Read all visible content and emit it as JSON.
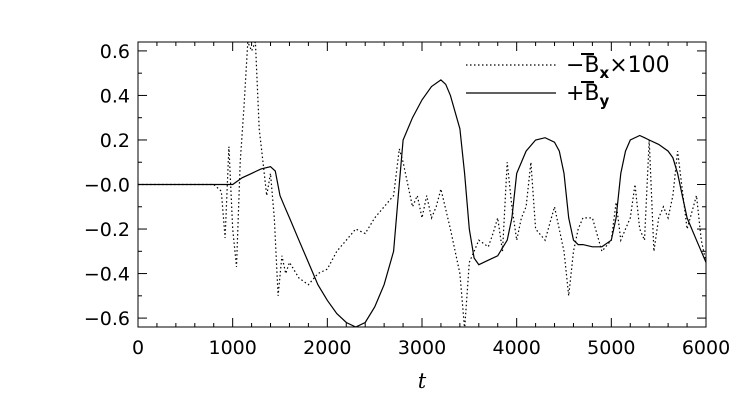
{
  "chart_data": {
    "type": "line",
    "title": "",
    "xlabel": "t",
    "ylabel": "",
    "xlim": [
      0,
      6000
    ],
    "ylim": [
      -0.64,
      0.64
    ],
    "x_ticks": [
      0,
      1000,
      2000,
      3000,
      4000,
      5000,
      6000
    ],
    "x_tick_labels": [
      "0",
      "1000",
      "2000",
      "3000",
      "4000",
      "5000",
      "6000"
    ],
    "y_ticks": [
      0.6,
      0.4,
      0.2,
      0.0,
      -0.2,
      -0.4,
      -0.6
    ],
    "y_tick_labels": [
      "0.6",
      "0.4",
      "0.2",
      "−0.0",
      "−0.2",
      "−0.4",
      "−0.6"
    ],
    "grid": false,
    "legend_position": "top-right",
    "series": [
      {
        "name": "−B̅ₓ×100",
        "legend_prefix": "−B",
        "legend_sub": "x",
        "legend_suffix": "×100",
        "style": "dotted",
        "color": "#000000",
        "x": [
          0,
          800,
          880,
          920,
          960,
          1000,
          1040,
          1080,
          1120,
          1160,
          1200,
          1240,
          1280,
          1320,
          1360,
          1400,
          1440,
          1480,
          1520,
          1560,
          1600,
          1700,
          1800,
          1900,
          2000,
          2100,
          2200,
          2300,
          2400,
          2500,
          2600,
          2700,
          2760,
          2800,
          2850,
          2900,
          2950,
          3000,
          3050,
          3100,
          3150,
          3200,
          3300,
          3400,
          3450,
          3500,
          3550,
          3600,
          3700,
          3750,
          3800,
          3850,
          3900,
          3950,
          4000,
          4050,
          4100,
          4150,
          4200,
          4300,
          4400,
          4500,
          4550,
          4600,
          4650,
          4700,
          4800,
          4900,
          5000,
          5050,
          5100,
          5150,
          5200,
          5250,
          5300,
          5350,
          5400,
          5450,
          5500,
          5550,
          5600,
          5650,
          5700,
          5800,
          5900,
          5950,
          6000
        ],
        "y": [
          0.0,
          0.0,
          -0.03,
          -0.24,
          0.17,
          -0.2,
          -0.37,
          0.1,
          0.35,
          0.64,
          0.6,
          0.64,
          0.25,
          0.1,
          -0.05,
          0.05,
          -0.15,
          -0.5,
          -0.32,
          -0.4,
          -0.35,
          -0.42,
          -0.45,
          -0.4,
          -0.38,
          -0.3,
          -0.25,
          -0.2,
          -0.22,
          -0.15,
          -0.1,
          -0.05,
          0.16,
          0.1,
          0.0,
          -0.1,
          -0.05,
          -0.15,
          -0.05,
          -0.15,
          -0.1,
          -0.02,
          -0.2,
          -0.4,
          -0.65,
          -0.35,
          -0.3,
          -0.25,
          -0.28,
          -0.22,
          -0.15,
          -0.3,
          0.1,
          -0.1,
          -0.25,
          -0.15,
          -0.1,
          0.1,
          -0.2,
          -0.25,
          -0.1,
          -0.3,
          -0.5,
          -0.3,
          -0.2,
          -0.15,
          -0.15,
          -0.3,
          -0.25,
          -0.08,
          -0.25,
          -0.2,
          -0.15,
          0.0,
          -0.2,
          -0.25,
          0.2,
          -0.3,
          -0.15,
          -0.1,
          -0.15,
          -0.05,
          0.15,
          -0.2,
          -0.05,
          -0.25,
          -0.35
        ]
      },
      {
        "name": "+B̅ᵧ",
        "legend_prefix": "+B",
        "legend_sub": "y",
        "legend_suffix": "",
        "style": "solid",
        "color": "#000000",
        "x": [
          0,
          1000,
          1100,
          1200,
          1300,
          1400,
          1450,
          1500,
          1550,
          1600,
          1700,
          1800,
          1900,
          2000,
          2100,
          2200,
          2300,
          2400,
          2500,
          2600,
          2700,
          2750,
          2800,
          2900,
          3000,
          3100,
          3200,
          3250,
          3300,
          3400,
          3450,
          3500,
          3550,
          3600,
          3700,
          3800,
          3900,
          3950,
          4000,
          4100,
          4200,
          4300,
          4400,
          4450,
          4500,
          4550,
          4600,
          4650,
          4700,
          4800,
          4900,
          5000,
          5050,
          5100,
          5150,
          5200,
          5300,
          5350,
          5400,
          5500,
          5600,
          5650,
          5700,
          5750,
          5800,
          5900,
          6000
        ],
        "y": [
          0.0,
          0.0,
          0.03,
          0.05,
          0.07,
          0.08,
          0.06,
          -0.05,
          -0.1,
          -0.15,
          -0.25,
          -0.35,
          -0.45,
          -0.52,
          -0.58,
          -0.62,
          -0.64,
          -0.62,
          -0.55,
          -0.45,
          -0.3,
          -0.05,
          0.2,
          0.3,
          0.38,
          0.44,
          0.47,
          0.45,
          0.4,
          0.25,
          0.05,
          -0.2,
          -0.33,
          -0.36,
          -0.34,
          -0.32,
          -0.25,
          -0.15,
          0.05,
          0.15,
          0.2,
          0.21,
          0.19,
          0.15,
          0.05,
          -0.15,
          -0.25,
          -0.27,
          -0.27,
          -0.28,
          -0.28,
          -0.25,
          -0.15,
          0.05,
          0.15,
          0.2,
          0.22,
          0.21,
          0.2,
          0.18,
          0.15,
          0.12,
          0.05,
          -0.05,
          -0.15,
          -0.25,
          -0.35
        ]
      }
    ]
  }
}
